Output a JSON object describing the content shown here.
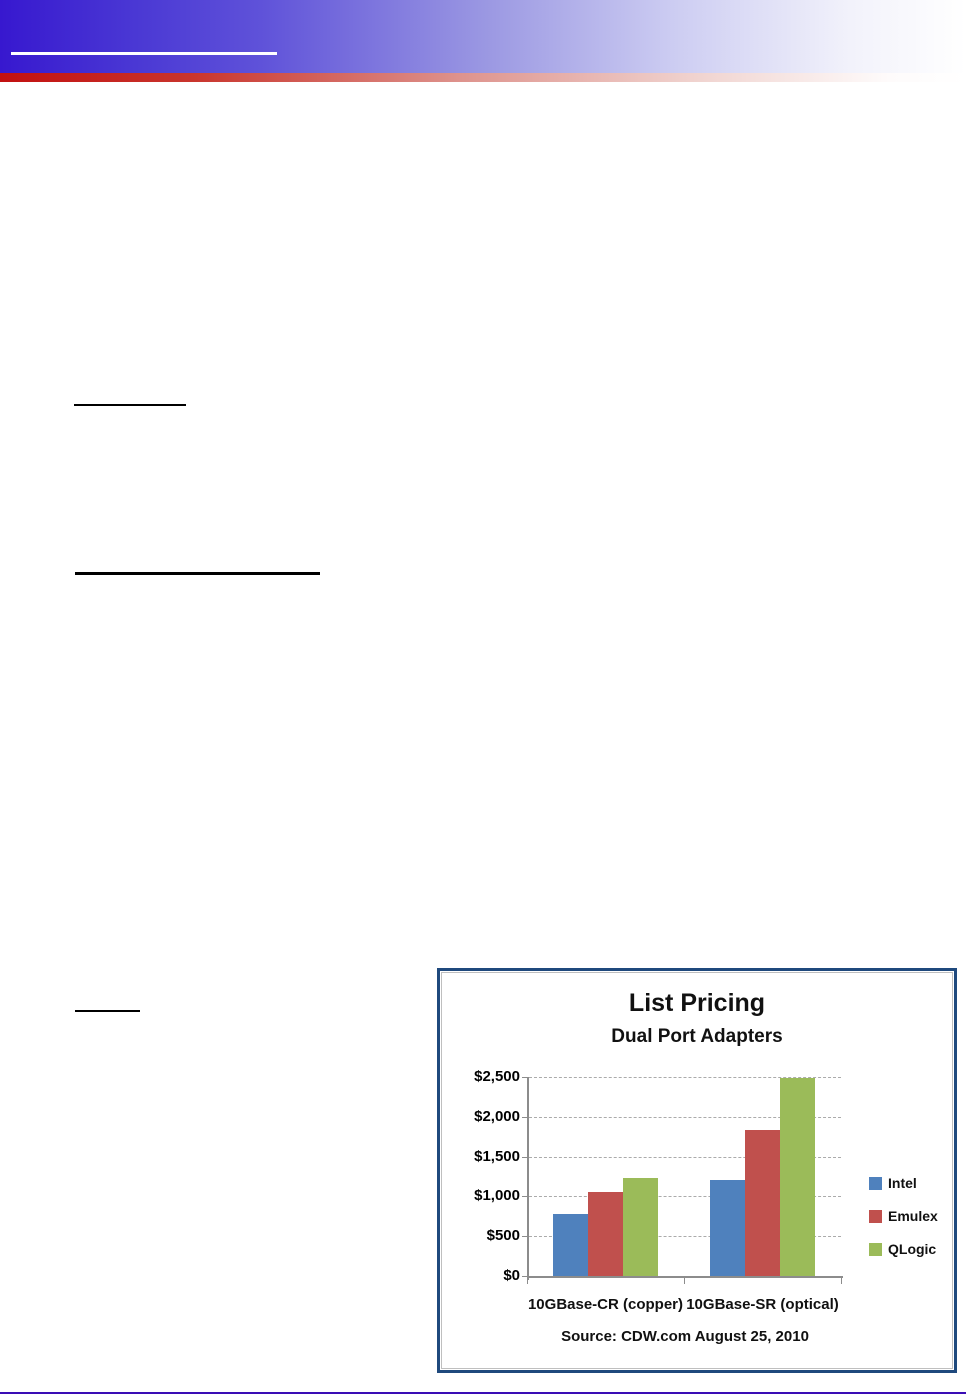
{
  "page": {
    "type": "document-page",
    "colors": {
      "header_gradient_start": "#3718CF",
      "header_accent_red": "#C21010",
      "header_underline": "#FFFFFF",
      "footer_rule": "#3A0DB5",
      "chart_border": "#1F497D",
      "chart_inner_border": "#BFBFBF",
      "gridline": "#ABABAB",
      "axis": "#8C8C8C"
    }
  },
  "chart_data": {
    "type": "bar",
    "title": "List Pricing",
    "subtitle": "Dual Port Adapters",
    "categories": [
      "10GBase-CR (copper)",
      "10GBase-SR (optical)"
    ],
    "series": [
      {
        "name": "Intel",
        "color": "#4F81BD",
        "values": [
          780,
          1210
        ]
      },
      {
        "name": "Emulex",
        "color": "#C0504D",
        "values": [
          1050,
          1840
        ]
      },
      {
        "name": "QLogic",
        "color": "#9BBB59",
        "values": [
          1230,
          2490
        ]
      }
    ],
    "xlabel": "",
    "ylabel": "",
    "ylim": [
      0,
      2500
    ],
    "ytick_step": 500,
    "ytick_labels": [
      "$0",
      "$500",
      "$1,000",
      "$1,500",
      "$2,000",
      "$2,500"
    ],
    "grid": "horizontal-dashed",
    "legend_position": "right",
    "source": "Source: CDW.com  August 25, 2010"
  }
}
